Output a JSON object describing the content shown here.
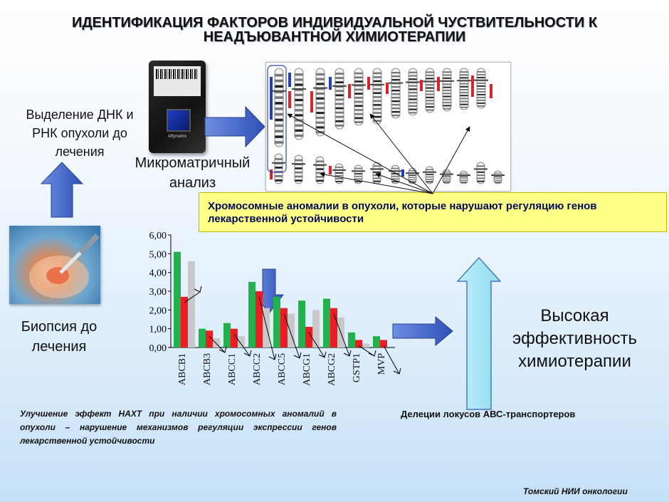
{
  "title": {
    "line1": "ИДЕНТИФИКАЦИЯ ФАКТОРОВ ИНДИВИДУАЛЬНОЙ ЧУСТВИТЕЛЬНОСТИ К",
    "line2": "НЕАДЪЮВАНТНОЙ ХИМИОТЕРАПИИ"
  },
  "dna_extraction": {
    "line1": "Выделение ДНК и",
    "line2": "РНК опухоли до",
    "line3": "лечения"
  },
  "microarray": {
    "line1": "Микроматричный",
    "line2": "анализ"
  },
  "chip": {
    "brand": "Affymetrix"
  },
  "biopsy": {
    "line1": "Биопсия до",
    "line2": "лечения"
  },
  "callout": "Хромосомные аномалии  в опухоли, которые  нарушают регуляцию генов лекарственной устойчивости",
  "effect": {
    "line1": "Высокая",
    "line2": "эффективность",
    "line3": "химиотерапии"
  },
  "note": "Улучшение эффект НАХТ при наличии хромосомных аномалий в опухоли – нарушение механизмов регуляции экспрессии генов лекарственной устойчивости",
  "deletion_caption": "Делеции локусов АВС-транспортеров",
  "footer": "Томский НИИ онкологии",
  "colors": {
    "green": "#22b14c",
    "red": "#ed1c24",
    "gray": "#c8c8c8",
    "arrow_blue": "#3f5fc8"
  },
  "chart_data": {
    "type": "bar",
    "ylim": [
      0,
      6
    ],
    "yticks": [
      "0,00",
      "1,00",
      "2,00",
      "3,00",
      "4,00",
      "5,00",
      "6,00"
    ],
    "categories": [
      "ABCB1",
      "ABCB3",
      "ABCC1",
      "ABCC2",
      "ABCC5",
      "ABCG1",
      "ABCG2",
      "GSTP1",
      "MVP"
    ],
    "series": [
      {
        "color": "#22b14c",
        "values": [
          5.1,
          1.0,
          1.3,
          3.5,
          2.7,
          2.5,
          2.6,
          0.8,
          0.6
        ]
      },
      {
        "color": "#ed1c24",
        "values": [
          2.7,
          0.9,
          1.0,
          3.0,
          2.1,
          1.1,
          2.1,
          0.4,
          0.4
        ]
      },
      {
        "color": "#c8c8c8",
        "values": [
          4.6,
          0.5,
          0.6,
          2.1,
          1.8,
          2.0,
          1.6,
          0.2,
          0.0
        ]
      }
    ]
  }
}
